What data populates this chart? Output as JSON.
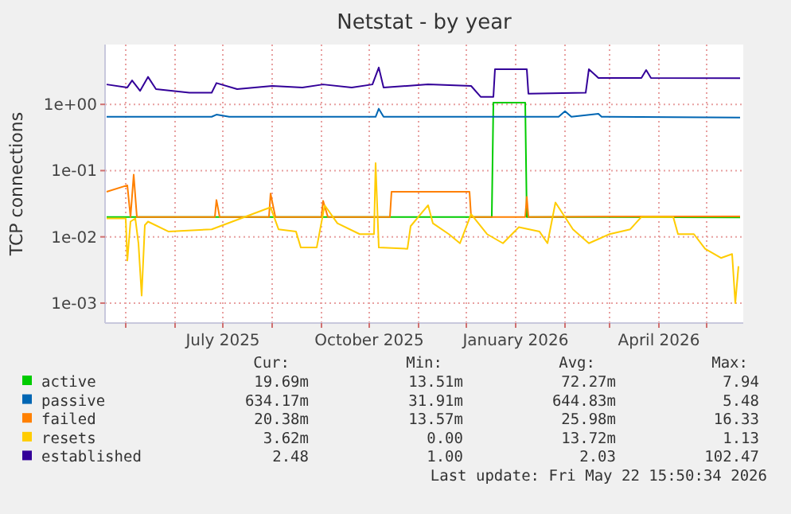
{
  "chart_data": {
    "type": "line",
    "title": "Netstat - by year",
    "ylabel": "TCP connections",
    "log": true,
    "grid": true,
    "legend": "bottom",
    "line_style": "solid",
    "xlim": [
      "2025-04-18",
      "2026-05-24"
    ],
    "xticks": [
      {
        "value": "2025-05-01",
        "label": null
      },
      {
        "value": "2025-06-01",
        "label": null
      },
      {
        "value": "2025-07-01",
        "label": "July 2025"
      },
      {
        "value": "2025-08-01",
        "label": null
      },
      {
        "value": "2025-09-01",
        "label": null
      },
      {
        "value": "2025-10-01",
        "label": "October 2025"
      },
      {
        "value": "2025-11-01",
        "label": null
      },
      {
        "value": "2025-12-01",
        "label": null
      },
      {
        "value": "2026-01-01",
        "label": "January 2026"
      },
      {
        "value": "2026-02-01",
        "label": null
      },
      {
        "value": "2026-03-01",
        "label": null
      },
      {
        "value": "2026-04-01",
        "label": "April 2026"
      },
      {
        "value": "2026-05-01",
        "label": null
      }
    ],
    "ylim": [
      0.0005,
      8
    ],
    "yticks": [
      {
        "value": 0.001,
        "label": "1e-03"
      },
      {
        "value": 0.01,
        "label": "1e-02"
      },
      {
        "value": 0.1,
        "label": "1e-01"
      },
      {
        "value": 1,
        "label": "1e+00"
      }
    ],
    "series": [
      {
        "name": "active",
        "color": "#00cc00",
        "x": [
          "2025-04-19",
          "2025-12-17",
          "2025-12-18",
          "2026-01-07",
          "2026-01-08",
          "2026-05-22"
        ],
        "values": [
          0.02,
          0.02,
          1.06,
          1.06,
          0.02,
          0.0197
        ]
      },
      {
        "name": "passive",
        "color": "#0066b3",
        "x": [
          "2025-04-19",
          "2025-06-24",
          "2025-06-27",
          "2025-07-05",
          "2025-10-05",
          "2025-10-07",
          "2025-10-10",
          "2026-01-28",
          "2026-02-01",
          "2026-02-05",
          "2026-02-22",
          "2026-02-24",
          "2026-05-22"
        ],
        "values": [
          0.65,
          0.65,
          0.7,
          0.65,
          0.65,
          0.86,
          0.65,
          0.65,
          0.79,
          0.65,
          0.72,
          0.65,
          0.634
        ]
      },
      {
        "name": "failed",
        "color": "#ff8000",
        "x": [
          "2025-04-19",
          "2025-05-02",
          "2025-05-04",
          "2025-05-06",
          "2025-05-08",
          "2025-06-26",
          "2025-06-27",
          "2025-06-29",
          "2025-07-30",
          "2025-07-31",
          "2025-08-03",
          "2025-09-01",
          "2025-09-02",
          "2025-09-05",
          "2025-10-14",
          "2025-10-15",
          "2025-12-03",
          "2025-12-04",
          "2026-01-07",
          "2026-01-08",
          "2026-01-09",
          "2026-05-22"
        ],
        "values": [
          0.048,
          0.06,
          0.02,
          0.087,
          0.02,
          0.02,
          0.036,
          0.02,
          0.02,
          0.045,
          0.02,
          0.02,
          0.035,
          0.02,
          0.02,
          0.048,
          0.048,
          0.02,
          0.02,
          0.04,
          0.02,
          0.0204
        ]
      },
      {
        "name": "resets",
        "color": "#ffcc00",
        "x": [
          "2025-04-19",
          "2025-05-01",
          "2025-05-02",
          "2025-05-04",
          "2025-05-07",
          "2025-05-09",
          "2025-05-11",
          "2025-05-13",
          "2025-05-15",
          "2025-05-28",
          "2025-06-24",
          "2025-07-31",
          "2025-08-05",
          "2025-08-16",
          "2025-08-19",
          "2025-08-29",
          "2025-09-03",
          "2025-09-11",
          "2025-09-25",
          "2025-10-04",
          "2025-10-05",
          "2025-10-07",
          "2025-10-25",
          "2025-10-27",
          "2025-11-07",
          "2025-11-10",
          "2025-11-20",
          "2025-11-27",
          "2025-12-04",
          "2025-12-14",
          "2025-12-24",
          "2026-01-03",
          "2026-01-16",
          "2026-01-21",
          "2026-01-26",
          "2026-02-06",
          "2026-02-16",
          "2026-03-01",
          "2026-03-14",
          "2026-03-21",
          "2026-04-10",
          "2026-04-13",
          "2026-04-23",
          "2026-04-30",
          "2026-05-10",
          "2026-05-17",
          "2026-05-19",
          "2026-05-21"
        ],
        "values": [
          0.019,
          0.019,
          0.0044,
          0.017,
          0.019,
          0.008,
          0.0013,
          0.015,
          0.017,
          0.012,
          0.013,
          0.028,
          0.013,
          0.012,
          0.0069,
          0.0069,
          0.03,
          0.016,
          0.011,
          0.011,
          0.13,
          0.0069,
          0.0066,
          0.0145,
          0.03,
          0.016,
          0.011,
          0.008,
          0.022,
          0.011,
          0.008,
          0.014,
          0.012,
          0.008,
          0.033,
          0.013,
          0.008,
          0.011,
          0.013,
          0.02,
          0.02,
          0.011,
          0.011,
          0.0066,
          0.0048,
          0.0055,
          0.001,
          0.0036
        ]
      },
      {
        "name": "established",
        "color": "#330099",
        "x": [
          "2025-04-19",
          "2025-05-02",
          "2025-05-05",
          "2025-05-10",
          "2025-05-15",
          "2025-05-20",
          "2025-06-10",
          "2025-06-24",
          "2025-06-27",
          "2025-07-10",
          "2025-08-01",
          "2025-08-20",
          "2025-09-02",
          "2025-09-20",
          "2025-10-03",
          "2025-10-07",
          "2025-10-10",
          "2025-11-07",
          "2025-12-04",
          "2025-12-10",
          "2025-12-18",
          "2025-12-19",
          "2026-01-08",
          "2026-01-09",
          "2026-02-14",
          "2026-02-16",
          "2026-02-22",
          "2026-03-21",
          "2026-03-24",
          "2026-03-27",
          "2026-05-22"
        ],
        "values": [
          2.0,
          1.8,
          2.3,
          1.6,
          2.6,
          1.7,
          1.5,
          1.5,
          2.1,
          1.7,
          1.9,
          1.8,
          2.0,
          1.8,
          2.0,
          3.6,
          1.8,
          2.0,
          1.9,
          1.3,
          1.3,
          3.4,
          3.4,
          1.45,
          1.5,
          3.4,
          2.5,
          2.5,
          3.3,
          2.5,
          2.48
        ]
      }
    ],
    "annotations": [
      "Cur:",
      "Min:",
      "Avg:",
      "Max:",
      "19.69m",
      "13.51m",
      "72.27m",
      "7.94",
      "634.17m",
      "31.91m",
      "644.83m",
      "5.48",
      "20.38m",
      "13.57m",
      "25.98m",
      "16.33",
      "3.62m",
      "0.00",
      "13.72m",
      "1.13",
      "2.48",
      "1.00",
      "2.03",
      "102.47",
      "Last update: Fri May 22 15:50:34 2026"
    ]
  }
}
